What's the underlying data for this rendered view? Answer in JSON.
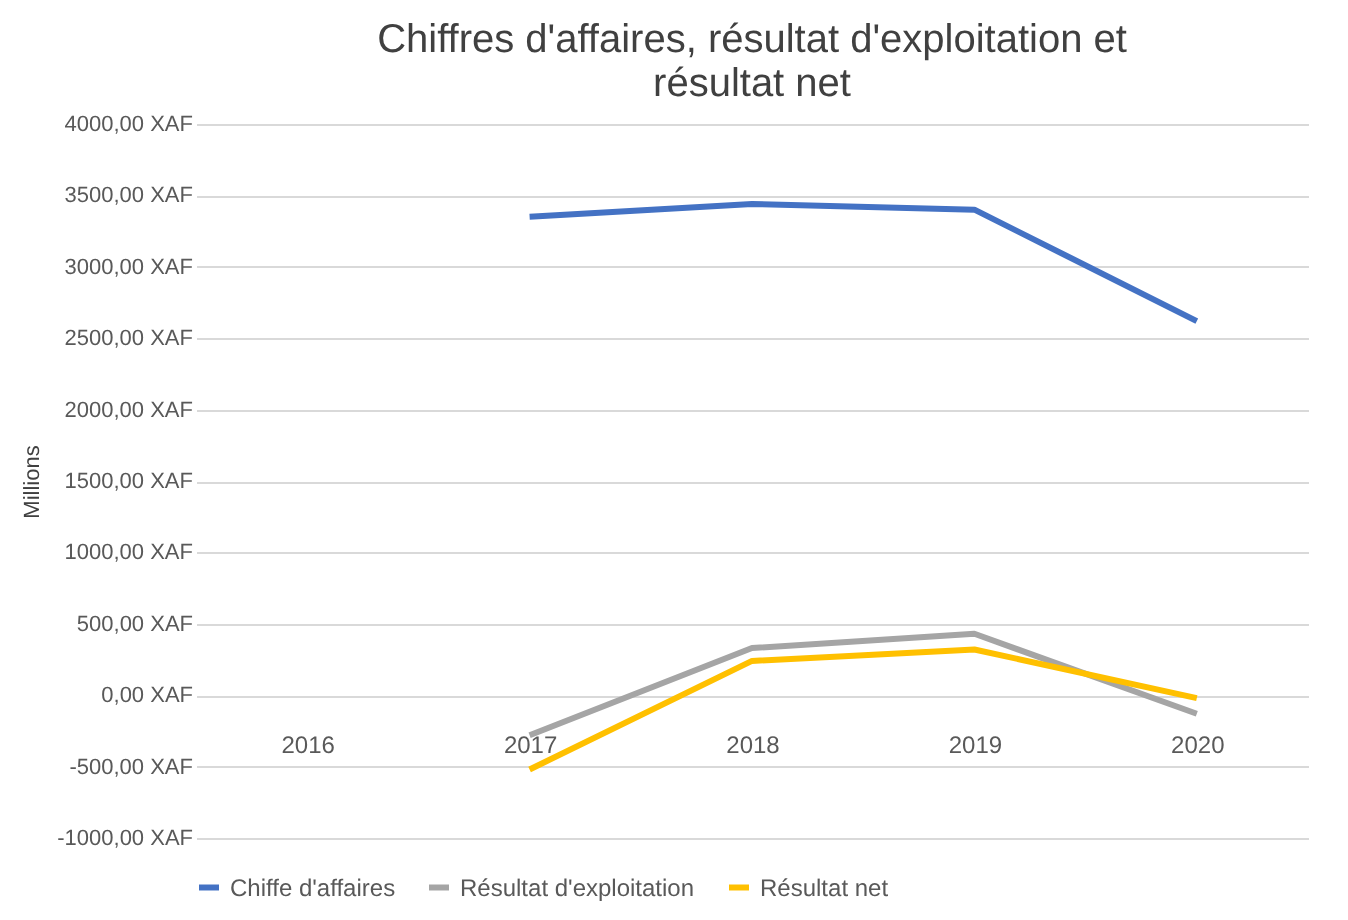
{
  "chart_data": {
    "type": "line",
    "title": "Chiffres d'affaires, résultat d'exploitation et résultat net",
    "ylabel": "Millions",
    "categories": [
      "2016",
      "2017",
      "2018",
      "2019",
      "2020"
    ],
    "series": [
      {
        "name": "Chiffe d'affaires",
        "color": "#4472c4",
        "values": [
          null,
          3350,
          3440,
          3400,
          2620
        ]
      },
      {
        "name": "Résultat d'exploitation",
        "color": "#a5a5a5",
        "values": [
          null,
          -280,
          330,
          430,
          -130
        ]
      },
      {
        "name": "Résultat net",
        "color": "#ffc000",
        "values": [
          null,
          -520,
          240,
          320,
          -20
        ]
      }
    ],
    "ylim": [
      -1000,
      4000
    ],
    "yticks": [
      {
        "value": -1000,
        "label": "-1000,00  XAF"
      },
      {
        "value": -500,
        "label": "-500,00  XAF"
      },
      {
        "value": 0,
        "label": "0,00  XAF"
      },
      {
        "value": 500,
        "label": "500,00  XAF"
      },
      {
        "value": 1000,
        "label": "1000,00  XAF"
      },
      {
        "value": 1500,
        "label": "1500,00  XAF"
      },
      {
        "value": 2000,
        "label": "2000,00  XAF"
      },
      {
        "value": 2500,
        "label": "2500,00  XAF"
      },
      {
        "value": 3000,
        "label": "3000,00  XAF"
      },
      {
        "value": 3500,
        "label": "3500,00  XAF"
      },
      {
        "value": 4000,
        "label": "4000,00  XAF"
      }
    ],
    "grid": true,
    "legend": "bottom",
    "marker": "none",
    "line_style": "solid"
  }
}
